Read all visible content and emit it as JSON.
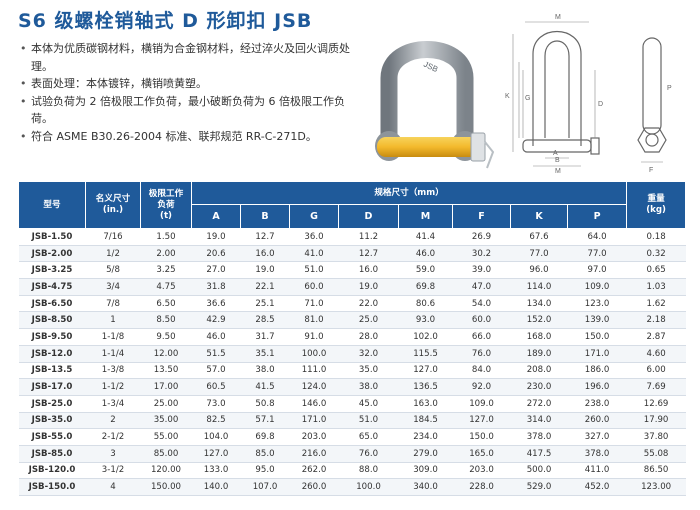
{
  "title": "S6 级螺栓销轴式 D 形卸扣 JSB",
  "bullets": [
    "本体为优质碳钢材料，横销为合金钢材料，经过淬火及回火调质处理。",
    "表面处理：本体镀锌，横销喷黄塑。",
    "试验负荷为 2 倍极限工作负荷，最小破断负荷为 6 倍极限工作负荷。",
    "符合 ASME B30.26-2004 标准、联邦规范 RR-C-271D。"
  ],
  "colors": {
    "header_bg": "#1f5a9a",
    "title": "#1f5a9a",
    "pin": "#f3b92c",
    "body": "#9aa1a8"
  },
  "drawing_labels": {
    "M": "M",
    "K": "K",
    "G": "G",
    "D": "D",
    "B": "B",
    "A": "A",
    "P": "P",
    "F": "F"
  },
  "photo_text": "JSB",
  "table": {
    "header": {
      "model": "型号",
      "nominal_size_line1": "名义尺寸",
      "nominal_size_line2": "(in.)",
      "wll_line1": "极限工作",
      "wll_line2": "负荷",
      "wll_line3": "(t)",
      "spec": "规格尺寸（mm）",
      "weight_line1": "重量",
      "weight_line2": "(kg)",
      "dims": [
        "A",
        "B",
        "G",
        "D",
        "M",
        "F",
        "K",
        "P"
      ]
    },
    "rows": [
      [
        "JSB-1.50",
        "7/16",
        "1.50",
        "19.0",
        "12.7",
        "36.0",
        "11.2",
        "41.4",
        "26.9",
        "67.6",
        "64.0",
        "0.18"
      ],
      [
        "JSB-2.00",
        "1/2",
        "2.00",
        "20.6",
        "16.0",
        "41.0",
        "12.7",
        "46.0",
        "30.2",
        "77.0",
        "77.0",
        "0.32"
      ],
      [
        "JSB-3.25",
        "5/8",
        "3.25",
        "27.0",
        "19.0",
        "51.0",
        "16.0",
        "59.0",
        "39.0",
        "96.0",
        "97.0",
        "0.65"
      ],
      [
        "JSB-4.75",
        "3/4",
        "4.75",
        "31.8",
        "22.1",
        "60.0",
        "19.0",
        "69.8",
        "47.0",
        "114.0",
        "109.0",
        "1.03"
      ],
      [
        "JSB-6.50",
        "7/8",
        "6.50",
        "36.6",
        "25.1",
        "71.0",
        "22.0",
        "80.6",
        "54.0",
        "134.0",
        "123.0",
        "1.62"
      ],
      [
        "JSB-8.50",
        "1",
        "8.50",
        "42.9",
        "28.5",
        "81.0",
        "25.0",
        "93.0",
        "60.0",
        "152.0",
        "139.0",
        "2.18"
      ],
      [
        "JSB-9.50",
        "1-1/8",
        "9.50",
        "46.0",
        "31.7",
        "91.0",
        "28.0",
        "102.0",
        "66.0",
        "168.0",
        "150.0",
        "2.87"
      ],
      [
        "JSB-12.0",
        "1-1/4",
        "12.00",
        "51.5",
        "35.1",
        "100.0",
        "32.0",
        "115.5",
        "76.0",
        "189.0",
        "171.0",
        "4.60"
      ],
      [
        "JSB-13.5",
        "1-3/8",
        "13.50",
        "57.0",
        "38.0",
        "111.0",
        "35.0",
        "127.0",
        "84.0",
        "208.0",
        "186.0",
        "6.00"
      ],
      [
        "JSB-17.0",
        "1-1/2",
        "17.00",
        "60.5",
        "41.5",
        "124.0",
        "38.0",
        "136.5",
        "92.0",
        "230.0",
        "196.0",
        "7.69"
      ],
      [
        "JSB-25.0",
        "1-3/4",
        "25.00",
        "73.0",
        "50.8",
        "146.0",
        "45.0",
        "163.0",
        "109.0",
        "272.0",
        "238.0",
        "12.69"
      ],
      [
        "JSB-35.0",
        "2",
        "35.00",
        "82.5",
        "57.1",
        "171.0",
        "51.0",
        "184.5",
        "127.0",
        "314.0",
        "260.0",
        "17.90"
      ],
      [
        "JSB-55.0",
        "2-1/2",
        "55.00",
        "104.0",
        "69.8",
        "203.0",
        "65.0",
        "234.0",
        "150.0",
        "378.0",
        "327.0",
        "37.80"
      ],
      [
        "JSB-85.0",
        "3",
        "85.00",
        "127.0",
        "85.0",
        "216.0",
        "76.0",
        "279.0",
        "165.0",
        "417.5",
        "378.0",
        "55.08"
      ],
      [
        "JSB-120.0",
        "3-1/2",
        "120.00",
        "133.0",
        "95.0",
        "262.0",
        "88.0",
        "309.0",
        "203.0",
        "500.0",
        "411.0",
        "86.50"
      ],
      [
        "JSB-150.0",
        "4",
        "150.00",
        "140.0",
        "107.0",
        "260.0",
        "100.0",
        "340.0",
        "228.0",
        "529.0",
        "452.0",
        "123.00"
      ]
    ]
  }
}
